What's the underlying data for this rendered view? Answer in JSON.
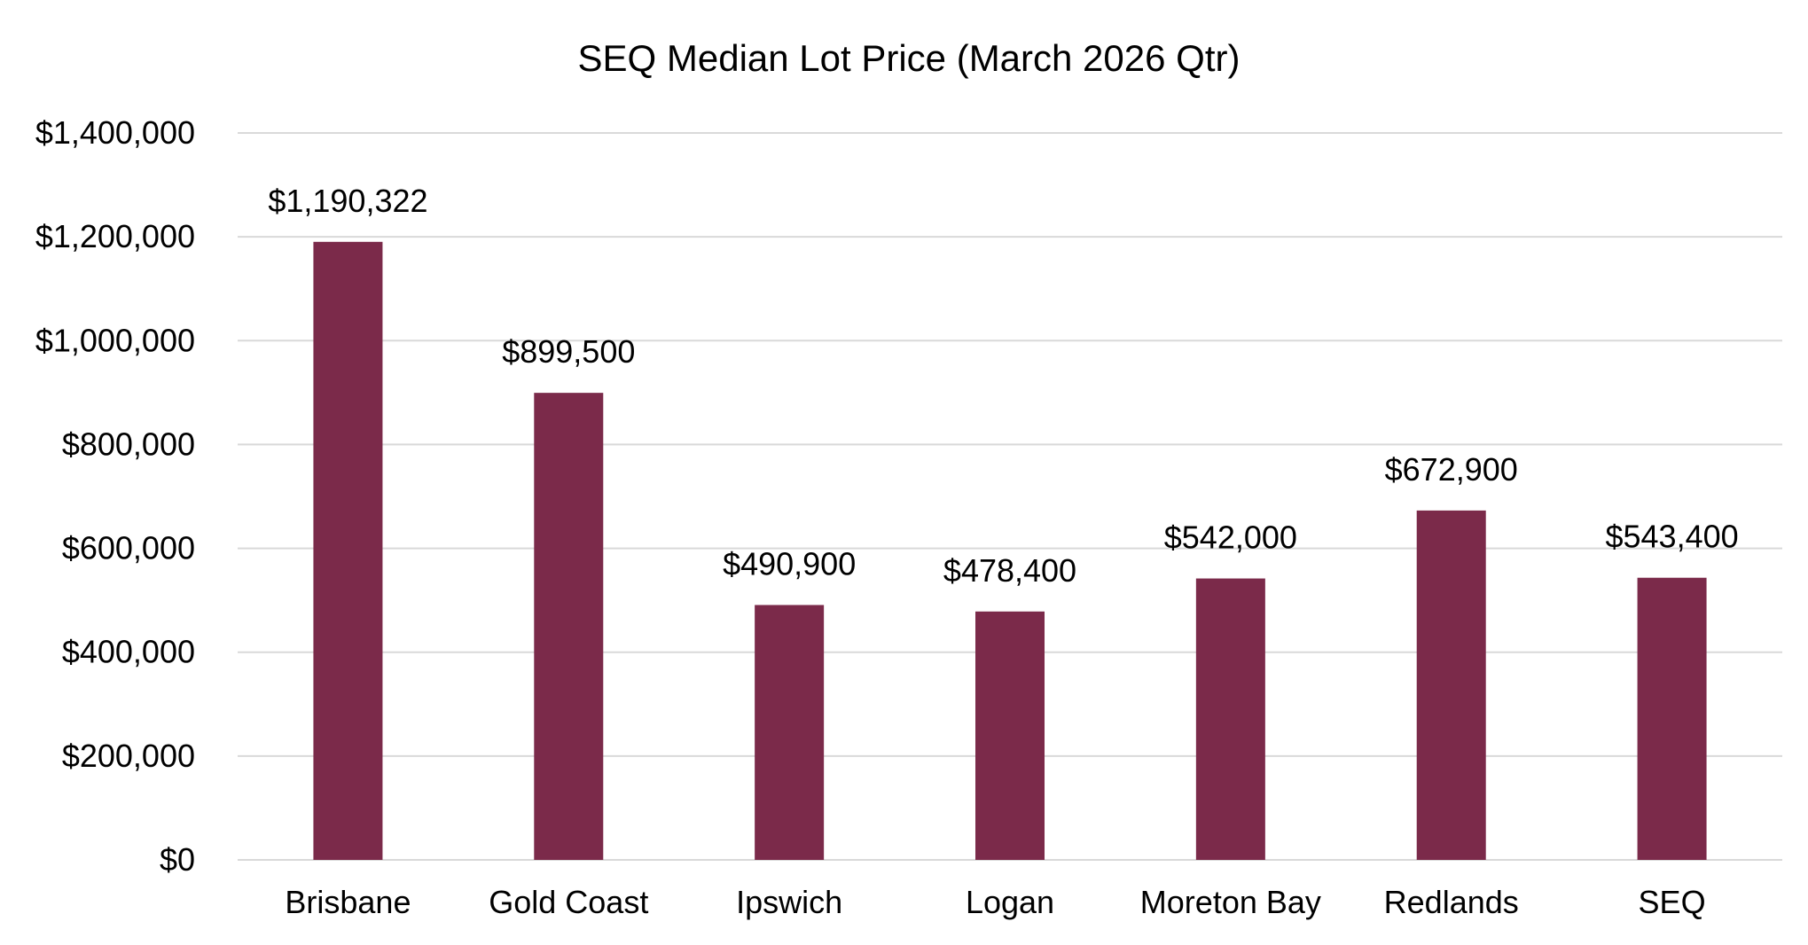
{
  "chart_data": {
    "type": "bar",
    "title": "SEQ Median Lot Price (March 2026 Qtr)",
    "xlabel": "",
    "ylabel": "",
    "categories": [
      "Brisbane",
      "Gold Coast",
      "Ipswich",
      "Logan",
      "Moreton Bay",
      "Redlands",
      "SEQ"
    ],
    "series": [
      {
        "values": [
          1190322,
          899500,
          490900,
          478400,
          542000,
          672900,
          543400
        ],
        "labels": [
          "$1,190,322",
          "$899,500",
          "$490,900",
          "$478,400",
          "$542,000",
          "$672,900",
          "$543,400"
        ],
        "color": "#7b2a4a"
      }
    ],
    "ylim": [
      0,
      1400000
    ],
    "yticks": [
      0,
      200000,
      400000,
      600000,
      800000,
      1000000,
      1200000,
      1400000
    ],
    "ytick_labels": [
      "$0",
      "$200,000",
      "$400,000",
      "$600,000",
      "$800,000",
      "$1,000,000",
      "$1,200,000",
      "$1,400,000"
    ],
    "grid": true,
    "legend": "none",
    "gridline_color": "#d9d9d9"
  }
}
